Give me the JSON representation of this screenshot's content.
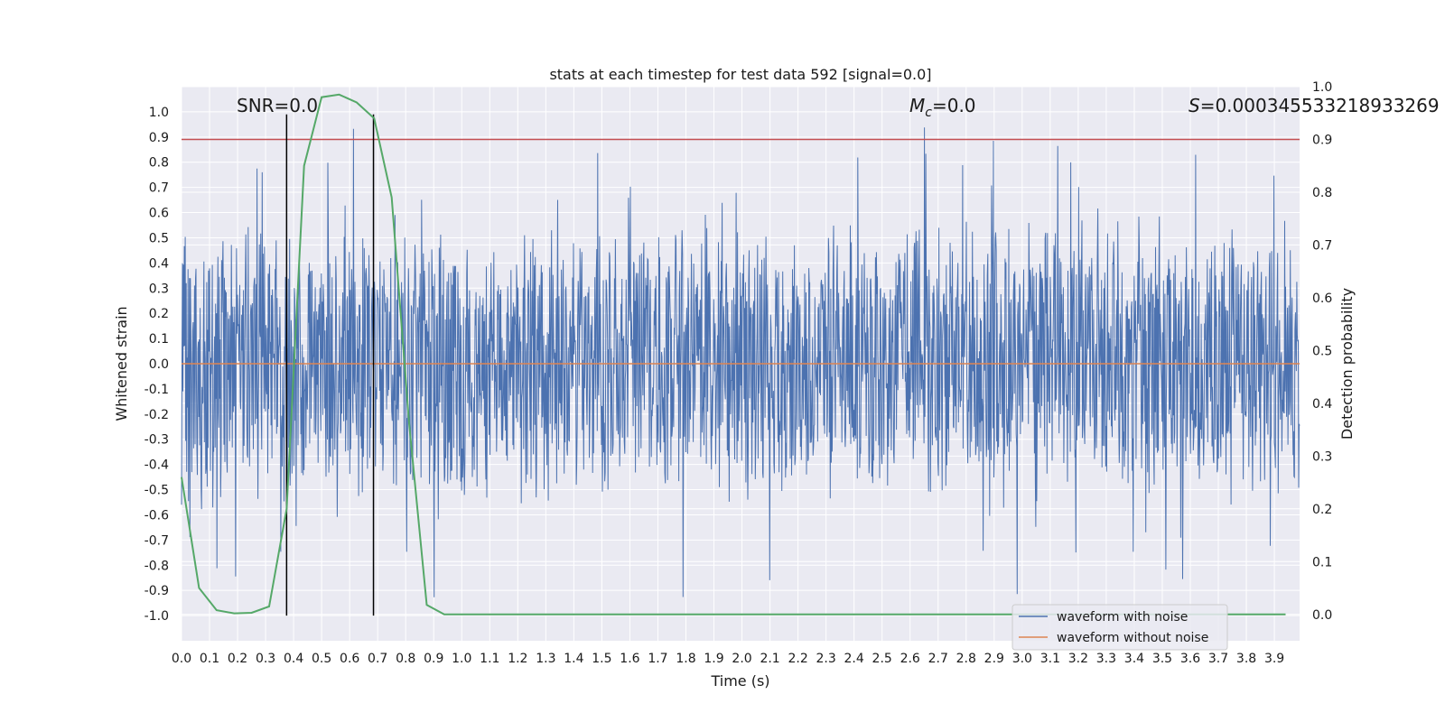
{
  "chart_data": {
    "type": "line",
    "title": "stats at each timestep for test data 592 [signal=0.0]",
    "xlabel": "Time (s)",
    "ylabel": "Whitened strain",
    "y2label": "Detection probability",
    "xlim": [
      0.0,
      3.99
    ],
    "ylim": [
      -1.1,
      1.1
    ],
    "y2lim": [
      -0.05,
      1.0
    ],
    "x_ticks": [
      "0.0",
      "0.1",
      "0.2",
      "0.3",
      "0.4",
      "0.5",
      "0.6",
      "0.7",
      "0.8",
      "0.9",
      "1.0",
      "1.1",
      "1.2",
      "1.3",
      "1.4",
      "1.5",
      "1.6",
      "1.7",
      "1.8",
      "1.9",
      "2.0",
      "2.1",
      "2.2",
      "2.3",
      "2.4",
      "2.5",
      "2.6",
      "2.7",
      "2.8",
      "2.9",
      "3.0",
      "3.1",
      "3.2",
      "3.3",
      "3.4",
      "3.5",
      "3.6",
      "3.7",
      "3.8",
      "3.9"
    ],
    "y_ticks": [
      "1.0",
      "0.9",
      "0.8",
      "0.7",
      "0.6",
      "0.5",
      "0.4",
      "0.3",
      "0.2",
      "0.1",
      "0.0",
      "-0.1",
      "-0.2",
      "-0.3",
      "-0.4",
      "-0.5",
      "-0.6",
      "-0.7",
      "-0.8",
      "-0.9",
      "-1.0"
    ],
    "y2_ticks": [
      "1.0",
      "0.9",
      "0.8",
      "0.7",
      "0.6",
      "0.5",
      "0.4",
      "0.3",
      "0.2",
      "0.1",
      "0.0"
    ],
    "annotations": {
      "snr": "SNR=0.0",
      "mc_symbol": "M",
      "mc_sub": "c",
      "mc_value": "=0.0",
      "s_symbol": "S",
      "s_value": "=0.000345533218933269"
    },
    "threshold_y2": 0.9,
    "vlines_x": [
      0.375,
      0.685
    ],
    "series": [
      {
        "name": "waveform with noise",
        "color": "#4c72b0",
        "amplitude_env": 0.6,
        "min": -1.0,
        "max": 0.98
      },
      {
        "name": "waveform without noise",
        "color": "#dd8452",
        "values_const": 0.0
      },
      {
        "name": "Detection probability",
        "color": "#55a868",
        "x": [
          0.0,
          0.0625,
          0.125,
          0.1875,
          0.25,
          0.3125,
          0.375,
          0.4375,
          0.5,
          0.5625,
          0.625,
          0.6875,
          0.75,
          0.8125,
          0.875,
          0.9375,
          1.0,
          3.94
        ],
        "values": [
          0.26,
          0.05,
          0.008,
          0.002,
          0.003,
          0.015,
          0.2,
          0.85,
          0.98,
          0.985,
          0.97,
          0.94,
          0.79,
          0.36,
          0.018,
          0.0,
          0.0,
          0.0
        ]
      }
    ],
    "legend": {
      "position": "bottom-right",
      "entries": [
        "waveform with noise",
        "waveform without noise"
      ]
    },
    "colors": {
      "background": "#eaeaf2",
      "grid": "#ffffff",
      "threshold": "#c44e52",
      "vline": "#000000"
    }
  }
}
